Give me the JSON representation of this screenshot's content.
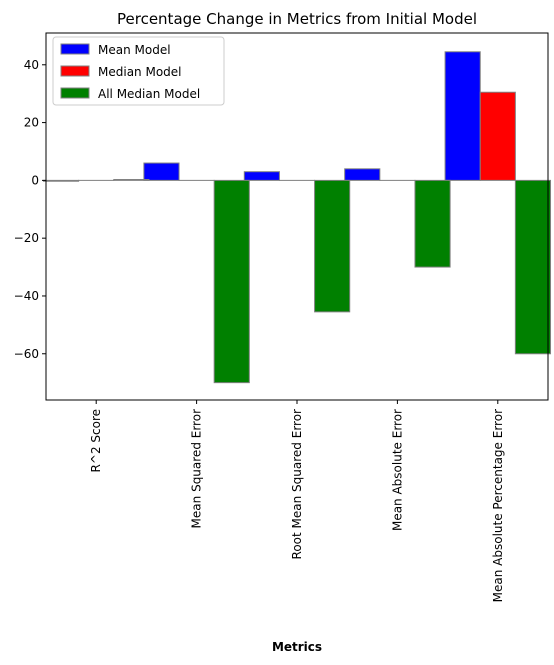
{
  "chart_data": {
    "type": "bar",
    "title": "Percentage Change in Metrics from Initial Model",
    "xlabel": "Metrics",
    "ylabel": "",
    "categories": [
      "R^2 Score",
      "Mean Squared Error",
      "Root Mean Squared Error",
      "Mean Absolute Error",
      "Mean Absolute Percentage Error"
    ],
    "series": [
      {
        "name": "Mean Model",
        "color": "#0000ff",
        "values": [
          -0.3,
          6.0,
          3.0,
          4.0,
          44.5
        ]
      },
      {
        "name": "Median Model",
        "color": "#ff0000",
        "values": [
          0.0,
          0.0,
          0.0,
          0.0,
          30.5
        ]
      },
      {
        "name": "All Median Model",
        "color": "#008000",
        "values": [
          0.3,
          -70.0,
          -45.5,
          -30.0,
          -60.0
        ]
      }
    ],
    "ylim": [
      -76,
      51
    ],
    "yticks": [
      40,
      20,
      0,
      -20,
      -40,
      -60
    ],
    "bar_edge_color": "#808080",
    "legend_position": "upper left",
    "grid": false
  }
}
